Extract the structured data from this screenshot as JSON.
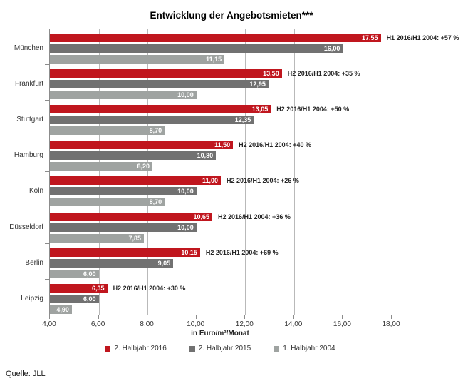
{
  "title": "Entwicklung der Angebotsmieten***",
  "source": "Quelle: JLL",
  "colors": {
    "series_2016": "#c0161e",
    "series_2015": "#717171",
    "series_2004": "#9fa3a1",
    "grid": "#b9b9b9",
    "axis": "#8c8c8c"
  },
  "chart_data": {
    "type": "bar",
    "orientation": "horizontal",
    "title": "Entwicklung der Angebotsmieten***",
    "xlabel": "in Euro/m²/Monat",
    "xlim": [
      4,
      18
    ],
    "xticks": [
      {
        "value": 4,
        "label": "4,00"
      },
      {
        "value": 6,
        "label": "6,00"
      },
      {
        "value": 8,
        "label": "8,00"
      },
      {
        "value": 10,
        "label": "10,00"
      },
      {
        "value": 12,
        "label": "12,00"
      },
      {
        "value": 14,
        "label": "14,00"
      },
      {
        "value": 16,
        "label": "16,00"
      },
      {
        "value": 18,
        "label": "18,00"
      }
    ],
    "grid": true,
    "legend_position": "bottom",
    "categories": [
      "München",
      "Frankfurt",
      "Stuttgart",
      "Hamburg",
      "Köln",
      "Düsseldorf",
      "Berlin",
      "Leipzig"
    ],
    "series": [
      {
        "name": "2. Halbjahr 2016",
        "color": "#c0161e",
        "values": [
          17.55,
          13.5,
          13.05,
          11.5,
          11.0,
          10.65,
          10.15,
          6.35
        ],
        "labels": [
          "17,55",
          "13,50",
          "13,05",
          "11,50",
          "11,00",
          "10,65",
          "10,15",
          "6,35"
        ]
      },
      {
        "name": "2. Halbjahr 2015",
        "color": "#717171",
        "values": [
          16.0,
          12.95,
          12.35,
          10.8,
          10.0,
          10.0,
          9.05,
          6.0
        ],
        "labels": [
          "16,00",
          "12,95",
          "12,35",
          "10,80",
          "10,00",
          "10,00",
          "9,05",
          "6,00"
        ]
      },
      {
        "name": "1. Halbjahr 2004",
        "color": "#9fa3a1",
        "values": [
          11.15,
          10.0,
          8.7,
          8.2,
          8.7,
          7.85,
          6.0,
          4.9
        ],
        "labels": [
          "11,15",
          "10,00",
          "8,70",
          "8,20",
          "8,70",
          "7,85",
          "6,00",
          "4,90"
        ]
      }
    ],
    "annotations": [
      "H1 2016/H1 2004: +57 %",
      "H2 2016/H1 2004: +35 %",
      "H2 2016/H1 2004: +50 %",
      "H2 2016/H1 2004: +40 %",
      "H2 2016/H1 2004: +26 %",
      "H2 2016/H1 2004: +36 %",
      "H2 2016/H1 2004: +69 %",
      "H2 2016/H1 2004: +30 %"
    ]
  }
}
